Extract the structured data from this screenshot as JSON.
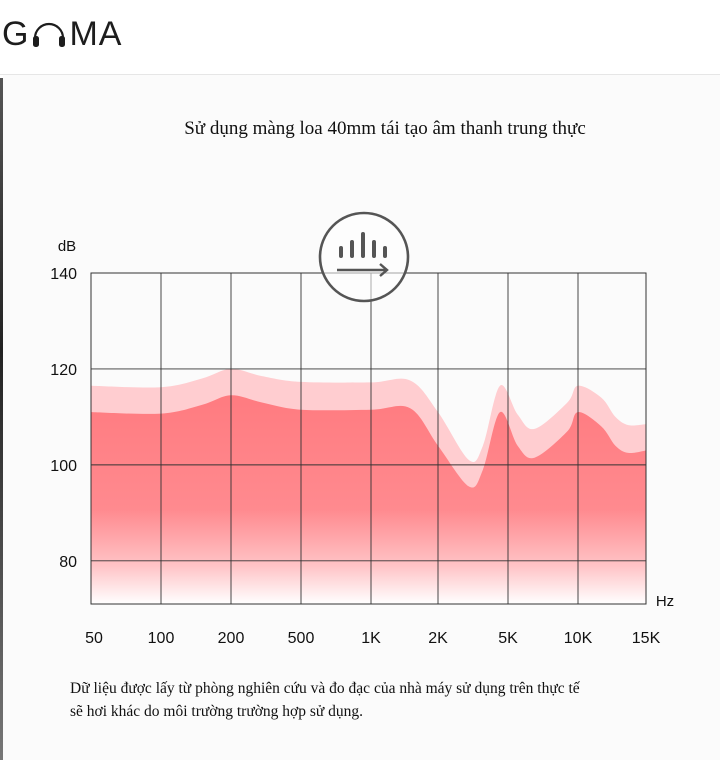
{
  "header": {
    "logo_text_left": "G",
    "logo_text_right": "MA",
    "logo_icon": "headphones-icon"
  },
  "headline": "Sử dụng màng loa 40mm tái tạo âm thanh trung thực",
  "note": {
    "line1": "Dữ liệu được lấy từ phòng nghiên cứu và đo đạc của nhà máy sử dụng trên thực tế",
    "line2": "sẽ hơi khác do môi trường trường hợp sử dụng."
  },
  "badge_icon": "equalizer-icon",
  "colors": {
    "front_area_top": "#ff7b80",
    "front_area_bottom": "#ffffff",
    "back_area": "#ffcdd0",
    "grid": "#333333"
  },
  "chart_data": {
    "type": "area",
    "ylabel": "dB",
    "xlabel": "Hz",
    "x_ticks": [
      "50",
      "100",
      "200",
      "500",
      "1K",
      "2K",
      "5K",
      "10K",
      "15K"
    ],
    "y_ticks": [
      140,
      120,
      100,
      80
    ],
    "ylim": [
      71,
      140
    ],
    "grid": true,
    "series": [
      {
        "values": [
          [
            50,
            116.5
          ],
          [
            100,
            116.2
          ],
          [
            150,
            118
          ],
          [
            200,
            120
          ],
          [
            300,
            118.5
          ],
          [
            500,
            117.3
          ],
          [
            1000,
            117.2
          ],
          [
            1500,
            117.6
          ],
          [
            2000,
            111
          ],
          [
            3000,
            101
          ],
          [
            3600,
            104
          ],
          [
            4500,
            116.5
          ],
          [
            5500,
            110.5
          ],
          [
            6500,
            107.5
          ],
          [
            9000,
            113
          ],
          [
            10000,
            116.5
          ],
          [
            11500,
            114
          ],
          [
            12500,
            110
          ],
          [
            13500,
            108.3
          ],
          [
            15000,
            108.5
          ]
        ]
      },
      {
        "values": [
          [
            50,
            111
          ],
          [
            100,
            110.7
          ],
          [
            150,
            112.5
          ],
          [
            200,
            114.5
          ],
          [
            300,
            113
          ],
          [
            500,
            111.5
          ],
          [
            1000,
            111.5
          ],
          [
            1500,
            111.8
          ],
          [
            2000,
            104
          ],
          [
            3000,
            95.5
          ],
          [
            3600,
            99
          ],
          [
            4500,
            111
          ],
          [
            5500,
            104
          ],
          [
            6500,
            101.5
          ],
          [
            9000,
            107
          ],
          [
            10000,
            111
          ],
          [
            11500,
            108
          ],
          [
            12500,
            104
          ],
          [
            13500,
            102.5
          ],
          [
            15000,
            103
          ]
        ]
      }
    ]
  }
}
